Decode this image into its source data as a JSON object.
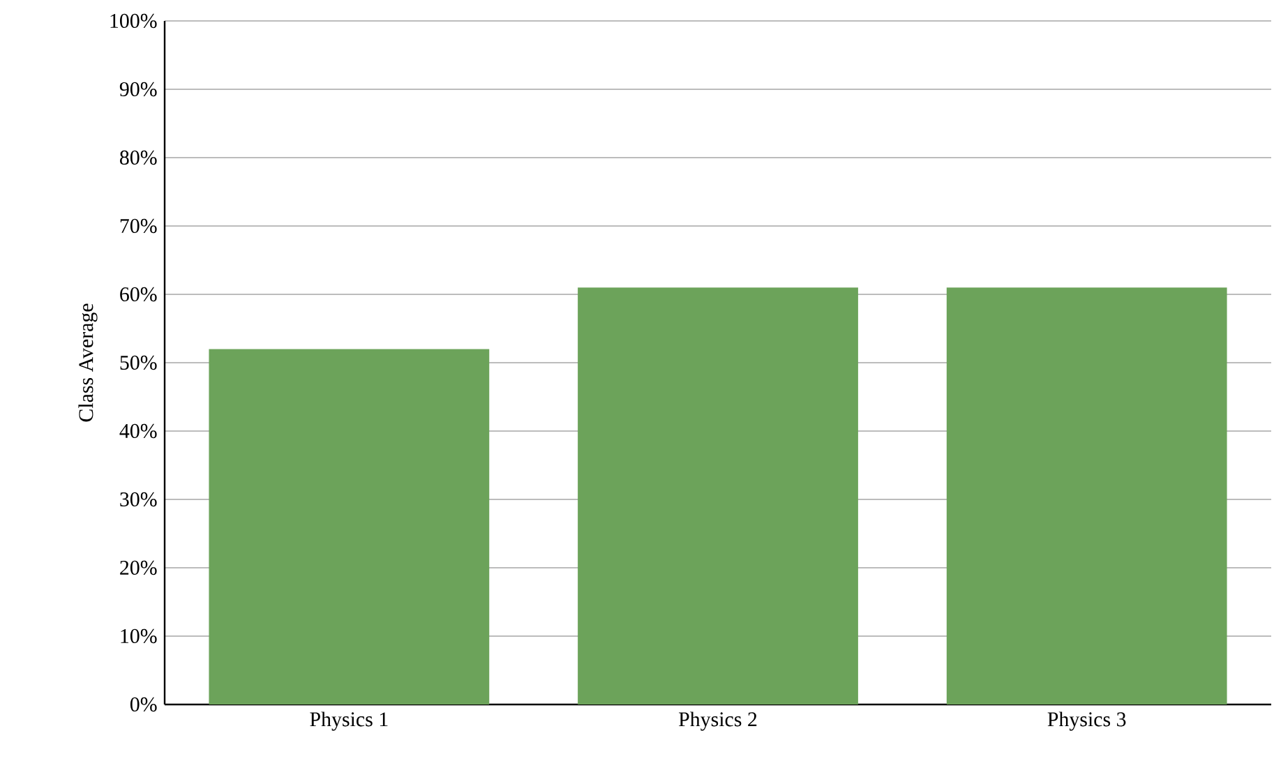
{
  "chart_data": {
    "type": "bar",
    "ylabel": "Class Average",
    "categories": [
      "Physics 1",
      "Physics 2",
      "Physics 3"
    ],
    "values": [
      52,
      61,
      61
    ],
    "color": "#6ca35a",
    "ylim": [
      0,
      100
    ],
    "yticks": [
      {
        "value": 0,
        "label": "0%"
      },
      {
        "value": 10,
        "label": "10%"
      },
      {
        "value": 20,
        "label": "20%"
      },
      {
        "value": 30,
        "label": "30%"
      },
      {
        "value": 40,
        "label": "40%"
      },
      {
        "value": 50,
        "label": "50%"
      },
      {
        "value": 60,
        "label": "60%"
      },
      {
        "value": 70,
        "label": "70%"
      },
      {
        "value": 80,
        "label": "80%"
      },
      {
        "value": 90,
        "label": "90%"
      },
      {
        "value": 100,
        "label": "100%"
      }
    ],
    "grid": "y"
  }
}
